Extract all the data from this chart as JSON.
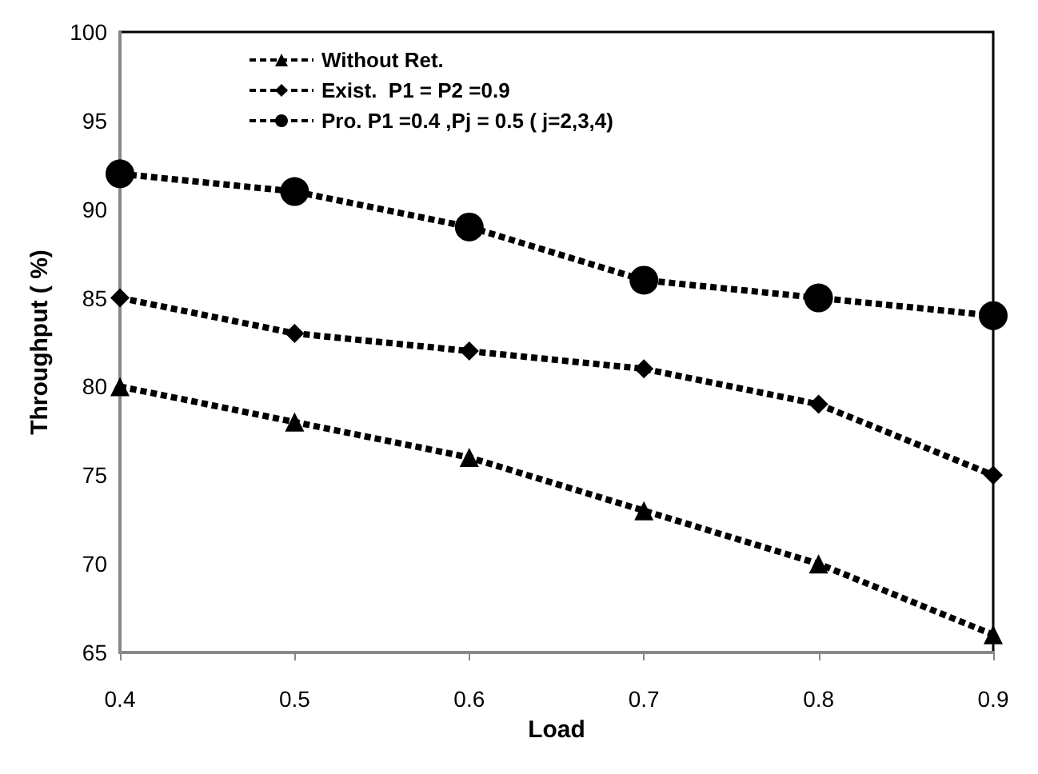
{
  "chart_data": {
    "type": "line",
    "xlabel": "Load",
    "ylabel": "Throughput ( %)",
    "x": [
      0.4,
      0.5,
      0.6,
      0.7,
      0.8,
      0.9
    ],
    "series": [
      {
        "name": "Without Ret.",
        "color": "#000000",
        "marker": "triangle",
        "line_style": "dashed",
        "values": [
          80,
          78,
          76,
          73,
          70,
          66
        ]
      },
      {
        "name": "Exist.  P1 = P2 =0.9",
        "color": "#000000",
        "marker": "diamond",
        "line_style": "dashed",
        "values": [
          85,
          83,
          82,
          81,
          79,
          75
        ]
      },
      {
        "name": "Pro. P1 =0.4 ,Pj = 0.5 ( j=2,3,4)",
        "color": "#000000",
        "marker": "circle",
        "line_style": "dashed",
        "values": [
          92,
          91,
          89,
          86,
          85,
          84
        ]
      }
    ],
    "xlim": [
      0.4,
      0.9
    ],
    "xticks": [
      0.4,
      0.5,
      0.6,
      0.7,
      0.8,
      0.9
    ],
    "ylim": [
      65,
      100
    ],
    "yticks": [
      65,
      70,
      75,
      80,
      85,
      90,
      95,
      100
    ],
    "grid": false,
    "legend": "top"
  }
}
